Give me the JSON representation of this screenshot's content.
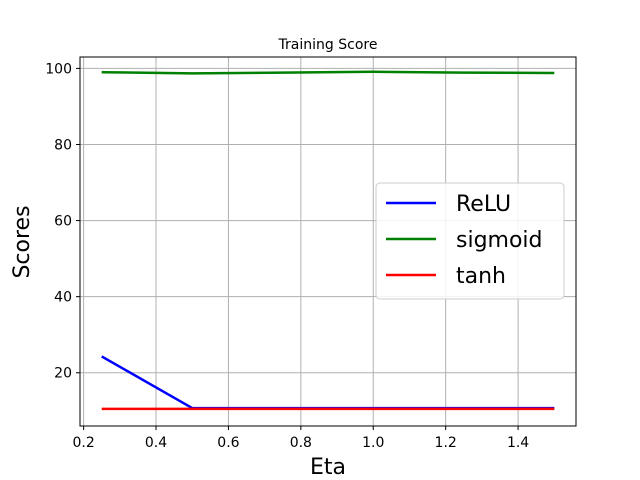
{
  "chart_data": {
    "type": "line",
    "title": "Training Score",
    "xlabel": "Eta",
    "ylabel": "Scores",
    "xlim": [
      0.19,
      1.56
    ],
    "ylim": [
      6,
      103
    ],
    "xticks": [
      0.2,
      0.4,
      0.6,
      0.8,
      1.0,
      1.2,
      1.4
    ],
    "xtick_labels": [
      "0.2",
      "0.4",
      "0.6",
      "0.8",
      "1.0",
      "1.2",
      "1.4"
    ],
    "yticks": [
      20,
      40,
      60,
      80,
      100
    ],
    "ytick_labels": [
      "20",
      "40",
      "60",
      "80",
      "100"
    ],
    "grid": true,
    "legend_position": "center-right",
    "series": [
      {
        "name": "ReLU",
        "color": "#0000ff",
        "x": [
          0.25,
          0.5,
          0.75,
          1.0,
          1.25,
          1.5
        ],
        "y": [
          24.3,
          10.7,
          10.7,
          10.7,
          10.7,
          10.7
        ]
      },
      {
        "name": "sigmoid",
        "color": "#008000",
        "x": [
          0.25,
          0.5,
          0.75,
          1.0,
          1.25,
          1.5
        ],
        "y": [
          99.0,
          98.7,
          98.9,
          99.1,
          98.9,
          98.8
        ]
      },
      {
        "name": "tanh",
        "color": "#ff0000",
        "x": [
          0.25,
          0.5,
          0.75,
          1.0,
          1.25,
          1.5
        ],
        "y": [
          10.5,
          10.5,
          10.5,
          10.5,
          10.5,
          10.5
        ]
      }
    ]
  }
}
